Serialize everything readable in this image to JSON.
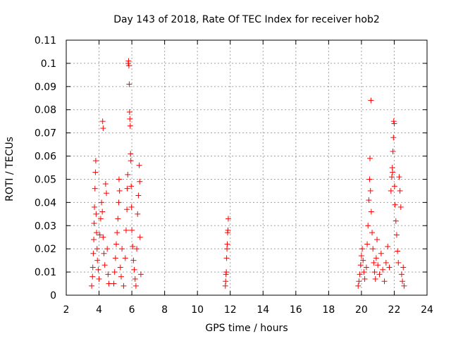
{
  "chart_data": {
    "type": "scatter",
    "title": "Day 143 of 2018, Rate Of TEC Index for receiver hob2",
    "xlabel": "GPS time / hours",
    "ylabel": "ROTI / TECUs",
    "xlim": [
      2,
      24
    ],
    "ylim": [
      0,
      0.11
    ],
    "xticks": [
      2,
      4,
      6,
      8,
      10,
      12,
      14,
      16,
      18,
      20,
      22,
      24
    ],
    "xtick_labels": [
      "2",
      "4",
      "6",
      "8",
      "10",
      "12",
      "14",
      "16",
      "18",
      "20",
      "22",
      "24"
    ],
    "yticks": [
      0,
      0.01,
      0.02,
      0.03,
      0.04,
      0.05,
      0.06,
      0.07,
      0.08,
      0.09,
      0.1,
      0.11
    ],
    "ytick_labels": [
      "0",
      "0.01",
      "0.02",
      "0.03",
      "0.04",
      "0.05",
      "0.06",
      "0.07",
      "0.08",
      "0.09",
      "0.1",
      "0.11"
    ],
    "grid": true,
    "marker": "+",
    "color": "#ff0000",
    "series": [
      {
        "name": "ROTI",
        "points": [
          [
            3.55,
            0.004
          ],
          [
            3.6,
            0.008
          ],
          [
            3.62,
            0.012
          ],
          [
            3.65,
            0.018
          ],
          [
            3.68,
            0.024
          ],
          [
            3.7,
            0.031
          ],
          [
            3.72,
            0.038
          ],
          [
            3.75,
            0.046
          ],
          [
            3.78,
            0.053
          ],
          [
            3.8,
            0.058
          ],
          [
            3.82,
            0.035
          ],
          [
            3.85,
            0.027
          ],
          [
            3.88,
            0.02
          ],
          [
            3.9,
            0.015
          ],
          [
            3.95,
            0.011
          ],
          [
            4.0,
            0.007
          ],
          [
            4.05,
            0.026
          ],
          [
            4.1,
            0.033
          ],
          [
            4.15,
            0.04
          ],
          [
            4.2,
            0.036
          ],
          [
            4.25,
            0.025
          ],
          [
            4.3,
            0.018
          ],
          [
            4.35,
            0.013
          ],
          [
            4.22,
            0.075
          ],
          [
            4.25,
            0.072
          ],
          [
            4.4,
            0.048
          ],
          [
            4.45,
            0.044
          ],
          [
            4.5,
            0.02
          ],
          [
            4.55,
            0.009
          ],
          [
            4.6,
            0.005
          ],
          [
            4.9,
            0.005
          ],
          [
            4.95,
            0.01
          ],
          [
            5.0,
            0.016
          ],
          [
            5.05,
            0.022
          ],
          [
            5.1,
            0.027
          ],
          [
            5.15,
            0.033
          ],
          [
            5.2,
            0.04
          ],
          [
            5.25,
            0.045
          ],
          [
            5.22,
            0.05
          ],
          [
            5.3,
            0.012
          ],
          [
            5.35,
            0.008
          ],
          [
            5.4,
            0.02
          ],
          [
            5.5,
            0.004
          ],
          [
            5.6,
            0.016
          ],
          [
            5.65,
            0.028
          ],
          [
            5.7,
            0.037
          ],
          [
            5.72,
            0.046
          ],
          [
            5.75,
            0.052
          ],
          [
            5.78,
            0.1
          ],
          [
            5.8,
            0.101
          ],
          [
            5.82,
            0.099
          ],
          [
            5.84,
            0.091
          ],
          [
            5.86,
            0.079
          ],
          [
            5.88,
            0.076
          ],
          [
            5.9,
            0.073
          ],
          [
            5.92,
            0.061
          ],
          [
            5.94,
            0.058
          ],
          [
            5.96,
            0.047
          ],
          [
            5.98,
            0.038
          ],
          [
            6.0,
            0.028
          ],
          [
            6.05,
            0.021
          ],
          [
            6.1,
            0.015
          ],
          [
            6.15,
            0.011
          ],
          [
            6.2,
            0.007
          ],
          [
            6.25,
            0.004
          ],
          [
            6.3,
            0.02
          ],
          [
            6.35,
            0.035
          ],
          [
            6.4,
            0.043
          ],
          [
            6.45,
            0.056
          ],
          [
            6.48,
            0.049
          ],
          [
            6.5,
            0.025
          ],
          [
            6.55,
            0.009
          ],
          [
            11.7,
            0.004
          ],
          [
            11.72,
            0.006
          ],
          [
            11.74,
            0.009
          ],
          [
            11.76,
            0.01
          ],
          [
            11.78,
            0.016
          ],
          [
            11.8,
            0.02
          ],
          [
            11.82,
            0.022
          ],
          [
            11.84,
            0.027
          ],
          [
            11.86,
            0.028
          ],
          [
            11.88,
            0.033
          ],
          [
            19.8,
            0.004
          ],
          [
            19.85,
            0.006
          ],
          [
            19.9,
            0.009
          ],
          [
            19.95,
            0.013
          ],
          [
            20.0,
            0.017
          ],
          [
            20.05,
            0.02
          ],
          [
            20.1,
            0.015
          ],
          [
            20.15,
            0.01
          ],
          [
            20.2,
            0.007
          ],
          [
            20.3,
            0.012
          ],
          [
            20.35,
            0.022
          ],
          [
            20.4,
            0.03
          ],
          [
            20.45,
            0.041
          ],
          [
            20.5,
            0.05
          ],
          [
            20.52,
            0.059
          ],
          [
            20.55,
            0.045
          ],
          [
            20.58,
            0.084
          ],
          [
            20.6,
            0.036
          ],
          [
            20.65,
            0.027
          ],
          [
            20.7,
            0.02
          ],
          [
            20.75,
            0.014
          ],
          [
            20.8,
            0.01
          ],
          [
            20.85,
            0.007
          ],
          [
            20.9,
            0.016
          ],
          [
            20.95,
            0.024
          ],
          [
            21.0,
            0.013
          ],
          [
            21.1,
            0.009
          ],
          [
            21.2,
            0.018
          ],
          [
            21.3,
            0.011
          ],
          [
            21.4,
            0.006
          ],
          [
            21.5,
            0.014
          ],
          [
            21.6,
            0.021
          ],
          [
            21.7,
            0.012
          ],
          [
            21.8,
            0.045
          ],
          [
            21.85,
            0.051
          ],
          [
            21.88,
            0.055
          ],
          [
            21.9,
            0.053
          ],
          [
            21.92,
            0.062
          ],
          [
            21.95,
            0.068
          ],
          [
            21.97,
            0.075
          ],
          [
            22.0,
            0.074
          ],
          [
            22.02,
            0.047
          ],
          [
            22.05,
            0.039
          ],
          [
            22.1,
            0.032
          ],
          [
            22.15,
            0.026
          ],
          [
            22.2,
            0.019
          ],
          [
            22.25,
            0.014
          ],
          [
            22.3,
            0.051
          ],
          [
            22.35,
            0.045
          ],
          [
            22.4,
            0.038
          ],
          [
            22.45,
            0.009
          ],
          [
            22.5,
            0.006
          ],
          [
            22.55,
            0.012
          ],
          [
            22.6,
            0.004
          ]
        ]
      }
    ]
  }
}
